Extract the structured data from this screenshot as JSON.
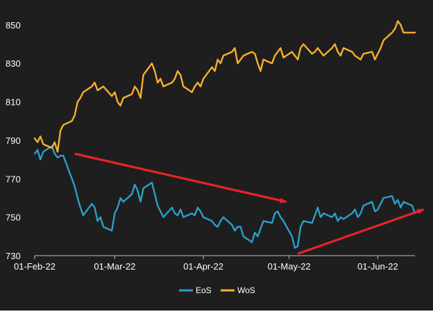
{
  "chart_data": {
    "type": "line",
    "title": "",
    "xlabel": "",
    "ylabel": "",
    "ylim": [
      730,
      855
    ],
    "yticks": [
      730,
      750,
      770,
      790,
      810,
      830,
      850
    ],
    "xtick_labels": [
      "01-Feb-22",
      "01-Mar-22",
      "01-Apr-22",
      "01-May-22",
      "01-Jun-22"
    ],
    "x_start": "2022-02-01",
    "x_end": "2022-06-14",
    "grid": false,
    "legend_position": "bottom-center",
    "background": "#1e1e1e",
    "series": [
      {
        "name": "EoS",
        "color": "#2b9fc8",
        "x": [
          "2022-02-01",
          "2022-02-02",
          "2022-02-03",
          "2022-02-04",
          "2022-02-07",
          "2022-02-08",
          "2022-02-09",
          "2022-02-10",
          "2022-02-11",
          "2022-02-14",
          "2022-02-15",
          "2022-02-16",
          "2022-02-17",
          "2022-02-18",
          "2022-02-21",
          "2022-02-22",
          "2022-02-23",
          "2022-02-24",
          "2022-02-25",
          "2022-02-28",
          "2022-03-01",
          "2022-03-02",
          "2022-03-03",
          "2022-03-04",
          "2022-03-07",
          "2022-03-08",
          "2022-03-09",
          "2022-03-10",
          "2022-03-11",
          "2022-03-14",
          "2022-03-15",
          "2022-03-16",
          "2022-03-17",
          "2022-03-18",
          "2022-03-21",
          "2022-03-22",
          "2022-03-23",
          "2022-03-24",
          "2022-03-25",
          "2022-03-28",
          "2022-03-29",
          "2022-03-30",
          "2022-03-31",
          "2022-04-01",
          "2022-04-04",
          "2022-04-05",
          "2022-04-06",
          "2022-04-07",
          "2022-04-08",
          "2022-04-11",
          "2022-04-12",
          "2022-04-13",
          "2022-04-14",
          "2022-04-15",
          "2022-04-18",
          "2022-04-19",
          "2022-04-20",
          "2022-04-21",
          "2022-04-22",
          "2022-04-25",
          "2022-04-26",
          "2022-04-27",
          "2022-04-28",
          "2022-04-29",
          "2022-05-02",
          "2022-05-03",
          "2022-05-04",
          "2022-05-05",
          "2022-05-06",
          "2022-05-09",
          "2022-05-10",
          "2022-05-11",
          "2022-05-12",
          "2022-05-13",
          "2022-05-16",
          "2022-05-17",
          "2022-05-18",
          "2022-05-19",
          "2022-05-20",
          "2022-05-23",
          "2022-05-24",
          "2022-05-25",
          "2022-05-26",
          "2022-05-27",
          "2022-05-30",
          "2022-05-31",
          "2022-06-01",
          "2022-06-02",
          "2022-06-03",
          "2022-06-06",
          "2022-06-07",
          "2022-06-08",
          "2022-06-09",
          "2022-06-10",
          "2022-06-13",
          "2022-06-14"
        ],
        "values": [
          783,
          785,
          780,
          784,
          787,
          783,
          781,
          782,
          782,
          770,
          766,
          760,
          755,
          751,
          757,
          755,
          748,
          750,
          745,
          743,
          752,
          755,
          760,
          758,
          762,
          767,
          764,
          758,
          765,
          768,
          762,
          756,
          753,
          750,
          755,
          752,
          751,
          754,
          750,
          752,
          751,
          755,
          753,
          750,
          748,
          746,
          745,
          748,
          750,
          746,
          743,
          745,
          745,
          740,
          737,
          742,
          740,
          744,
          748,
          747,
          752,
          753,
          750,
          748,
          740,
          734,
          735,
          745,
          748,
          747,
          751,
          755,
          750,
          752,
          750,
          752,
          748,
          750,
          749,
          752,
          754,
          750,
          752,
          756,
          758,
          753,
          754,
          757,
          760,
          761,
          757,
          759,
          755,
          758,
          756,
          752
        ]
      },
      {
        "name": "WoS",
        "color": "#f5b02e",
        "x": [
          "2022-02-01",
          "2022-02-02",
          "2022-02-03",
          "2022-02-04",
          "2022-02-07",
          "2022-02-08",
          "2022-02-09",
          "2022-02-10",
          "2022-02-11",
          "2022-02-14",
          "2022-02-15",
          "2022-02-16",
          "2022-02-17",
          "2022-02-18",
          "2022-02-21",
          "2022-02-22",
          "2022-02-23",
          "2022-02-24",
          "2022-02-25",
          "2022-02-28",
          "2022-03-01",
          "2022-03-02",
          "2022-03-03",
          "2022-03-04",
          "2022-03-07",
          "2022-03-08",
          "2022-03-09",
          "2022-03-10",
          "2022-03-11",
          "2022-03-14",
          "2022-03-15",
          "2022-03-16",
          "2022-03-17",
          "2022-03-18",
          "2022-03-21",
          "2022-03-22",
          "2022-03-23",
          "2022-03-24",
          "2022-03-25",
          "2022-03-28",
          "2022-03-29",
          "2022-03-30",
          "2022-03-31",
          "2022-04-01",
          "2022-04-04",
          "2022-04-05",
          "2022-04-06",
          "2022-04-07",
          "2022-04-08",
          "2022-04-11",
          "2022-04-12",
          "2022-04-13",
          "2022-04-14",
          "2022-04-15",
          "2022-04-18",
          "2022-04-19",
          "2022-04-20",
          "2022-04-21",
          "2022-04-22",
          "2022-04-25",
          "2022-04-26",
          "2022-04-27",
          "2022-04-28",
          "2022-04-29",
          "2022-05-02",
          "2022-05-03",
          "2022-05-04",
          "2022-05-05",
          "2022-05-06",
          "2022-05-09",
          "2022-05-10",
          "2022-05-11",
          "2022-05-12",
          "2022-05-13",
          "2022-05-16",
          "2022-05-17",
          "2022-05-18",
          "2022-05-19",
          "2022-05-20",
          "2022-05-23",
          "2022-05-24",
          "2022-05-25",
          "2022-05-26",
          "2022-05-27",
          "2022-05-30",
          "2022-05-31",
          "2022-06-01",
          "2022-06-02",
          "2022-06-03",
          "2022-06-06",
          "2022-06-07",
          "2022-06-08",
          "2022-06-09",
          "2022-06-10",
          "2022-06-13",
          "2022-06-14"
        ],
        "values": [
          791,
          789,
          792,
          788,
          786,
          789,
          784,
          795,
          798,
          800,
          803,
          810,
          812,
          815,
          818,
          820,
          816,
          817,
          818,
          813,
          815,
          810,
          808,
          812,
          814,
          818,
          816,
          812,
          824,
          830,
          826,
          820,
          822,
          818,
          820,
          822,
          826,
          824,
          818,
          815,
          818,
          820,
          818,
          822,
          828,
          826,
          832,
          830,
          834,
          836,
          838,
          830,
          832,
          834,
          836,
          835,
          830,
          826,
          832,
          830,
          834,
          836,
          838,
          833,
          836,
          834,
          832,
          838,
          840,
          835,
          836,
          838,
          836,
          834,
          838,
          840,
          836,
          834,
          838,
          836,
          834,
          833,
          832,
          835,
          836,
          832,
          835,
          838,
          842,
          846,
          848,
          852,
          850,
          846,
          846,
          846
        ]
      }
    ],
    "annotations": [
      {
        "type": "arrow",
        "color": "#e8232a",
        "from": [
          "2022-02-15",
          783
        ],
        "to": [
          "2022-04-30",
          758
        ]
      },
      {
        "type": "arrow",
        "color": "#e8232a",
        "from": [
          "2022-05-04",
          731
        ],
        "to": [
          "2022-06-17",
          754
        ]
      }
    ]
  }
}
